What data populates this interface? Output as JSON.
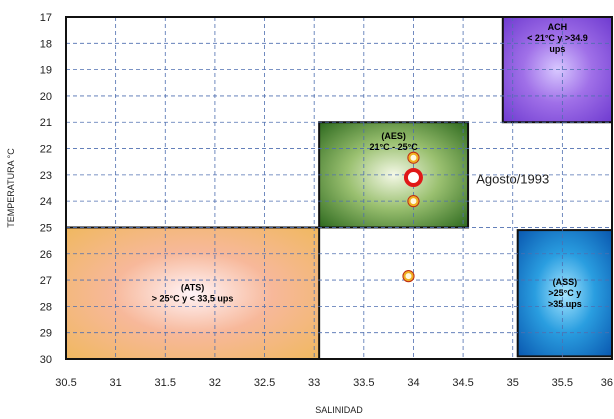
{
  "chart_data": {
    "type": "scatter",
    "xlabel": "SALINIDAD",
    "ylabel": "TEMPERATURA °C",
    "xlim": [
      30.5,
      36
    ],
    "ylim": [
      17,
      30
    ],
    "y_inverted": true,
    "grid": true,
    "x_ticks": [
      "30.5",
      "31",
      "31.5",
      "32",
      "32.5",
      "33",
      "33.5",
      "34",
      "34.5",
      "35",
      "35.5",
      "36"
    ],
    "y_ticks": [
      "17",
      "18",
      "19",
      "20",
      "21",
      "22",
      "23",
      "24",
      "25",
      "26",
      "27",
      "28",
      "29",
      "30"
    ],
    "colors": {
      "grid": "#4f6fb0",
      "frame": "#111111",
      "point_outline": "#c03010",
      "point_fill": "#f0b020",
      "highlight_point": "#e01818"
    },
    "water_masses": [
      {
        "id": "ACH",
        "lines": [
          "ACH",
          "< 21°C  y  >34.9",
          "ups"
        ],
        "x_range": [
          34.9,
          36
        ],
        "y_range": [
          17,
          21
        ],
        "gradient": [
          "#d8c8ff",
          "#a070e8",
          "#6f3bd0"
        ]
      },
      {
        "id": "AES",
        "lines": [
          "(AES)",
          "21°C - 25°C"
        ],
        "x_range": [
          33.05,
          34.55
        ],
        "y_range": [
          21,
          25
        ],
        "gradient": [
          "#f4f8e6",
          "#9ac070",
          "#2e6a1f"
        ]
      },
      {
        "id": "ATS",
        "lines": [
          "(ATS)",
          "> 25°C   y   < 33,5 ups"
        ],
        "x_range": [
          30.5,
          33.05
        ],
        "y_range": [
          25,
          30
        ],
        "gradient": [
          "#fff4f8",
          "#f7b89a",
          "#f0b860"
        ]
      },
      {
        "id": "ASS",
        "lines": [
          "(ASS)",
          ">25°C   y",
          ">35  ups"
        ],
        "x_range": [
          35.05,
          36
        ],
        "y_range": [
          25.1,
          29.9
        ],
        "gradient": [
          "#a8e6ff",
          "#2a9ee0",
          "#0a58b0"
        ]
      }
    ],
    "points": [
      {
        "x": 34.0,
        "y": 22.35,
        "highlight": false
      },
      {
        "x": 34.0,
        "y": 23.1,
        "highlight": true
      },
      {
        "x": 34.0,
        "y": 24.0,
        "highlight": false
      },
      {
        "x": 33.95,
        "y": 26.85,
        "highlight": false
      }
    ],
    "annotations": [
      {
        "text": "Agosto/1993",
        "x": 35.0,
        "y": 23.4
      }
    ]
  }
}
